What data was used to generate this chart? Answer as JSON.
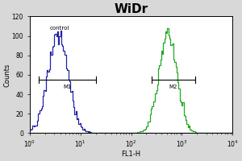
{
  "title": "WiDr",
  "xlabel": "FL1-H",
  "ylabel": "Counts",
  "title_fontsize": 11,
  "label_fontsize": 6,
  "tick_fontsize": 5.5,
  "xlim": [
    1,
    10000
  ],
  "ylim": [
    0,
    120
  ],
  "yticks": [
    0,
    20,
    40,
    60,
    80,
    100,
    120
  ],
  "control_label": "control",
  "control_color": "#2222aa",
  "sample_color": "#22aa22",
  "m1_label": "M1",
  "m2_label": "M2",
  "control_log_mean": 0.55,
  "control_log_std": 0.2,
  "sample_log_mean": 2.72,
  "sample_log_std": 0.18,
  "n_samples": 10000,
  "background_color": "#d8d8d8",
  "plot_bg_color": "#ffffff",
  "m1_x1": 1.5,
  "m1_x2": 20,
  "m1_y": 55,
  "m2_x1": 250,
  "m2_x2": 1800,
  "m2_y": 55
}
